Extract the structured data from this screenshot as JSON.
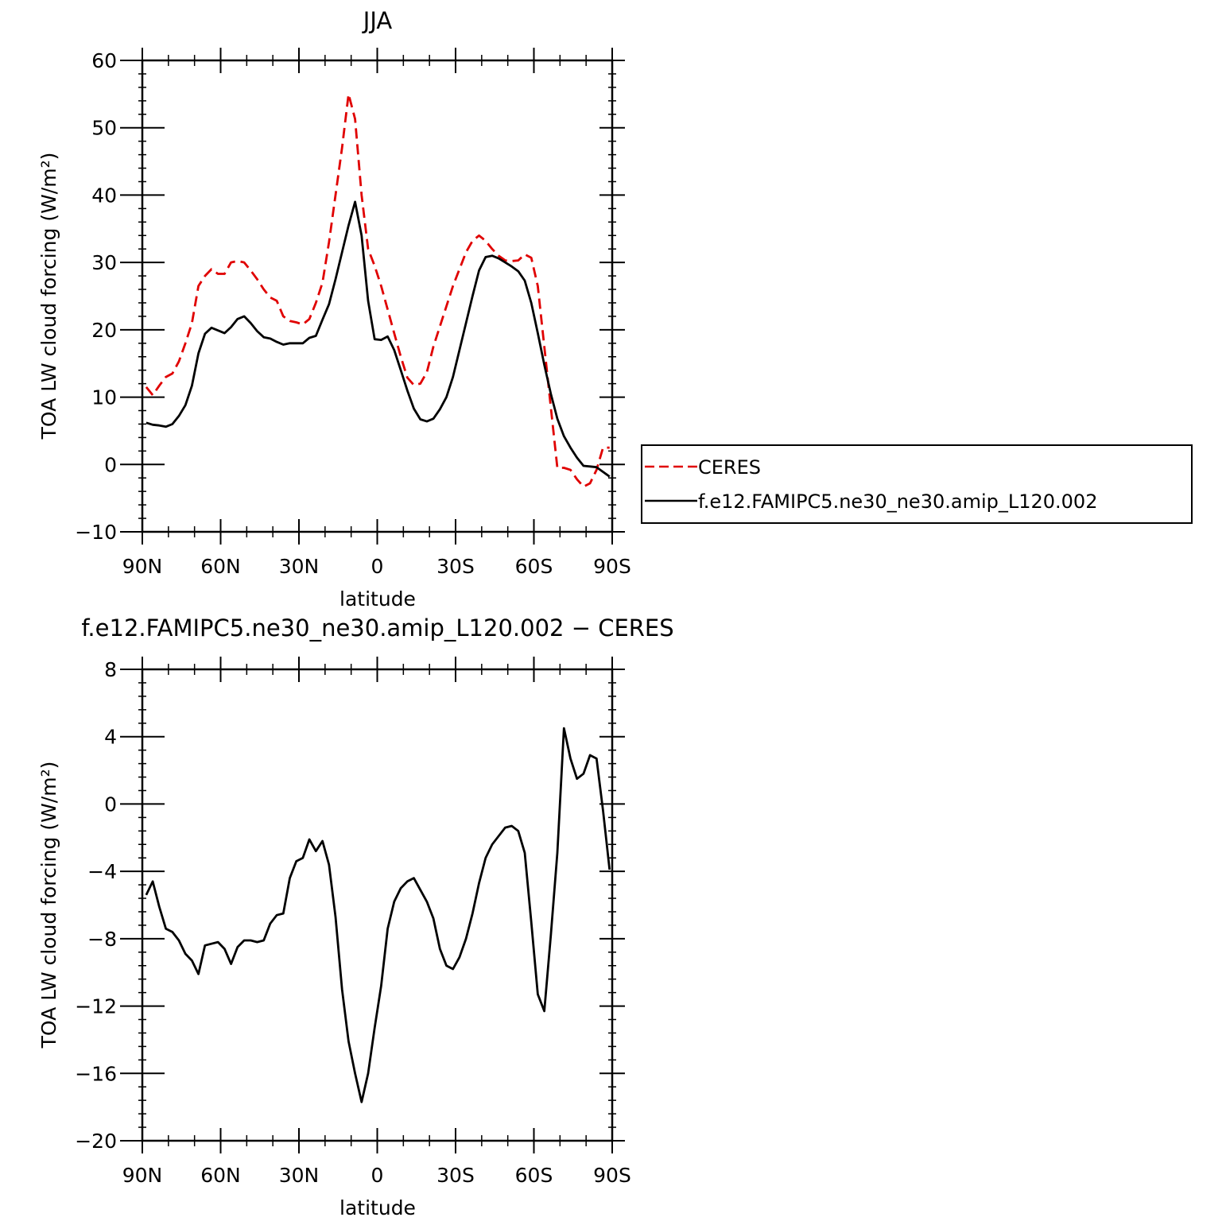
{
  "colors": {
    "obs": "#e00000",
    "model": "#000000",
    "axis": "#000000"
  },
  "chart_data": [
    {
      "type": "line",
      "title": "JJA",
      "xlabel": "latitude",
      "ylabel": "TOA LW cloud forcing (W/m²)",
      "xlim": [
        90,
        -90
      ],
      "ylim": [
        -10,
        60
      ],
      "yticks": [
        -10,
        0,
        10,
        20,
        30,
        40,
        50,
        60
      ],
      "yticks_labels": [
        "−10",
        "0",
        "10",
        "20",
        "30",
        "40",
        "50",
        "60"
      ],
      "xticks": [
        90,
        60,
        30,
        0,
        -30,
        -60,
        -90
      ],
      "xticks_labels": [
        "90N",
        "60N",
        "30N",
        "0",
        "30S",
        "60S",
        "90S"
      ],
      "legend": {
        "position": "right",
        "entries": [
          "CERES",
          "f.e12.FAMIPC5.ne30_ne30.amip_L120.002"
        ]
      },
      "series": [
        {
          "name": "CERES",
          "style": "dashed",
          "x": [
            88.5,
            86,
            83.5,
            81,
            78.5,
            76,
            73.5,
            71,
            68.5,
            66,
            63.5,
            61,
            58.5,
            56,
            53.5,
            51,
            48.5,
            46,
            43.5,
            41,
            38.5,
            36,
            33.5,
            31,
            28.5,
            26,
            23.5,
            21,
            18.5,
            16,
            13.5,
            11,
            8.5,
            6,
            3.5,
            1,
            -1.5,
            -4,
            -6.5,
            -9,
            -11.5,
            -14,
            -16.5,
            -19,
            -21.5,
            -24,
            -26.5,
            -29,
            -31.5,
            -34,
            -36.5,
            -39,
            -41.5,
            -44,
            -46.5,
            -49,
            -51.5,
            -54,
            -56.5,
            -59,
            -61.5,
            -64,
            -66.5,
            -69,
            -71.5,
            -74,
            -76.5,
            -79,
            -81.5,
            -84,
            -86.5,
            -89
          ],
          "values": [
            11.5,
            10.3,
            11.7,
            13.0,
            13.5,
            15.3,
            18.0,
            21.0,
            26.5,
            28.0,
            29.0,
            28.3,
            28.3,
            30.0,
            30.2,
            30.0,
            28.8,
            27.5,
            26.0,
            24.8,
            24.3,
            22.0,
            21.3,
            21.1,
            20.8,
            21.6,
            24.0,
            27.0,
            33.0,
            40.0,
            47.0,
            55.0,
            51.3,
            40.0,
            32.0,
            29.5,
            26.5,
            23.0,
            19.5,
            16.0,
            12.9,
            11.8,
            12.0,
            13.7,
            17.5,
            20.5,
            23.5,
            26.5,
            29.0,
            31.5,
            33.2,
            34.0,
            33.2,
            32.0,
            31.0,
            30.3,
            30.2,
            30.3,
            31.2,
            30.7,
            26.5,
            17.5,
            8.5,
            -0.5,
            -0.5,
            -0.8,
            -2.2,
            -3.3,
            -2.8,
            -0.8,
            2.5,
            2.5
          ]
        },
        {
          "name": "f.e12.FAMIPC5.ne30_ne30.amip_L120.002",
          "style": "solid",
          "x": [
            88.5,
            86,
            83.5,
            81,
            78.5,
            76,
            73.5,
            71,
            68.5,
            66,
            63.5,
            61,
            58.5,
            56,
            53.5,
            51,
            48.5,
            46,
            43.5,
            41,
            38.5,
            36,
            33.5,
            31,
            28.5,
            26,
            23.5,
            21,
            18.5,
            16,
            13.5,
            11,
            8.5,
            6,
            3.5,
            1,
            -1.5,
            -4,
            -6.5,
            -9,
            -11.5,
            -14,
            -16.5,
            -19,
            -21.5,
            -24,
            -26.5,
            -29,
            -31.5,
            -34,
            -36.5,
            -39,
            -41.5,
            -44,
            -46.5,
            -49,
            -51.5,
            -54,
            -56.5,
            -59,
            -61.5,
            -64,
            -66.5,
            -69,
            -71.5,
            -74,
            -76.5,
            -79,
            -81.5,
            -84,
            -86.5,
            -89
          ],
          "values": [
            6.2,
            5.9,
            5.8,
            5.6,
            6.0,
            7.2,
            8.8,
            11.7,
            16.5,
            19.4,
            20.3,
            19.9,
            19.5,
            20.4,
            21.6,
            22.0,
            21.0,
            19.8,
            18.9,
            18.7,
            18.2,
            17.8,
            18.0,
            18.0,
            18.0,
            18.8,
            19.1,
            21.5,
            23.8,
            27.5,
            31.5,
            35.5,
            39.0,
            34.0,
            24.3,
            18.6,
            18.5,
            19.0,
            17.0,
            14.0,
            11.0,
            8.3,
            6.7,
            6.4,
            6.8,
            8.2,
            10.0,
            13.0,
            17.0,
            21.0,
            25.0,
            28.8,
            30.8,
            31.0,
            30.6,
            30.0,
            29.4,
            28.7,
            27.3,
            24.0,
            19.5,
            14.8,
            10.5,
            6.8,
            4.2,
            2.5,
            1.0,
            -0.2,
            -0.3,
            -0.4,
            -1.1,
            -1.8
          ]
        }
      ]
    },
    {
      "type": "line",
      "title": "f.e12.FAMIPC5.ne30_ne30.amip_L120.002 − CERES",
      "xlabel": "latitude",
      "ylabel": "TOA LW cloud forcing (W/m²)",
      "xlim": [
        90,
        -90
      ],
      "ylim": [
        -20,
        8
      ],
      "yticks": [
        -20,
        -16,
        -12,
        -8,
        -4,
        0,
        4,
        8
      ],
      "yticks_labels": [
        "−20",
        "−16",
        "−12",
        "−8",
        "−4",
        "0",
        "4",
        "8"
      ],
      "xticks": [
        90,
        60,
        30,
        0,
        -30,
        -60,
        -90
      ],
      "xticks_labels": [
        "90N",
        "60N",
        "30N",
        "0",
        "30S",
        "60S",
        "90S"
      ],
      "series": [
        {
          "style": "solid",
          "x": [
            88.5,
            86,
            83.5,
            81,
            78.5,
            76,
            73.5,
            71,
            68.5,
            66,
            63.5,
            61,
            58.5,
            56,
            53.5,
            51,
            48.5,
            46,
            43.5,
            41,
            38.5,
            36,
            33.5,
            31,
            28.5,
            26,
            23.5,
            21,
            18.5,
            16,
            13.5,
            11,
            8.5,
            6,
            3.5,
            1,
            -1.5,
            -4,
            -6.5,
            -9,
            -11.5,
            -14,
            -16.5,
            -19,
            -21.5,
            -24,
            -26.5,
            -29,
            -31.5,
            -34,
            -36.5,
            -39,
            -41.5,
            -44,
            -46.5,
            -49,
            -51.5,
            -54,
            -56.5,
            -59,
            -61.5,
            -64,
            -66.5,
            -69,
            -71.5,
            -74,
            -76.5,
            -79,
            -81.5,
            -84,
            -86.5,
            -89
          ],
          "values": [
            -5.4,
            -4.6,
            -6.1,
            -7.4,
            -7.6,
            -8.1,
            -8.9,
            -9.3,
            -10.1,
            -8.4,
            -8.3,
            -8.2,
            -8.6,
            -9.5,
            -8.5,
            -8.1,
            -8.1,
            -8.2,
            -8.1,
            -7.1,
            -6.6,
            -6.5,
            -4.4,
            -3.4,
            -3.2,
            -2.1,
            -2.8,
            -2.2,
            -3.6,
            -6.7,
            -11.0,
            -14.1,
            -16.0,
            -17.7,
            -16.0,
            -13.3,
            -10.8,
            -7.4,
            -5.8,
            -5.0,
            -4.6,
            -4.4,
            -5.1,
            -5.8,
            -6.8,
            -8.6,
            -9.6,
            -9.8,
            -9.1,
            -8.0,
            -6.5,
            -4.7,
            -3.2,
            -2.4,
            -1.9,
            -1.4,
            -1.3,
            -1.6,
            -2.9,
            -7.0,
            -11.3,
            -12.3,
            -7.8,
            -2.9,
            4.5,
            2.7,
            1.5,
            1.8,
            2.9,
            2.7,
            -0.4,
            -3.9
          ]
        }
      ]
    }
  ]
}
